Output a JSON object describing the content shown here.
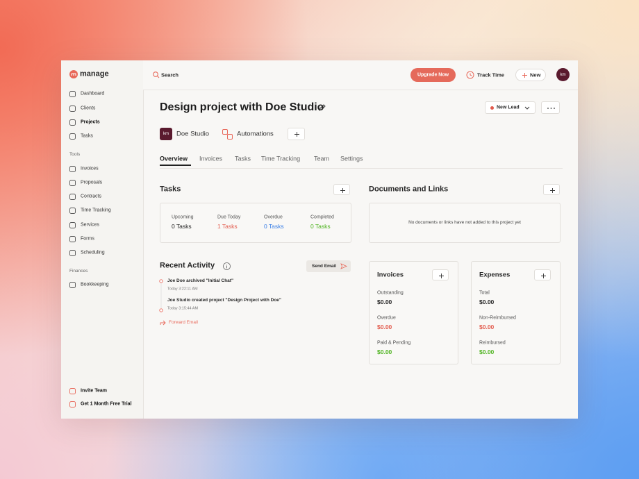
{
  "sidebar": {
    "logo": "manage",
    "items": [
      "Dashboard",
      "Clients",
      "Projects",
      "Tasks"
    ],
    "tools_label": "Tools",
    "tools": [
      "Invoices",
      "Proposals",
      "Contracts",
      "Time Tracking",
      "Services",
      "Forms",
      "Scheduling"
    ],
    "finances_label": "Finances",
    "finances": [
      "Bookkeeping"
    ],
    "footer": [
      "Invite Team",
      "Get 1 Month Free Trial"
    ]
  },
  "topbar": {
    "search": "Search",
    "upgrade": "Upgrade Now",
    "track_time": "Track Time",
    "new": "New",
    "avatar": "km"
  },
  "header": {
    "title": "Design project with Doe Studio",
    "status": "New Lead",
    "client_badge": "km",
    "client": "Doe Studio",
    "automations": "Automations"
  },
  "tabs": [
    "Overview",
    "Invoices",
    "Tasks",
    "Time Tracking",
    "Team",
    "Settings"
  ],
  "tasks": {
    "title": "Tasks",
    "stats": [
      {
        "label": "Upcoming",
        "value": "0 Tasks"
      },
      {
        "label": "Due Today",
        "value": "1 Tasks"
      },
      {
        "label": "Overdue",
        "value": "0 Tasks"
      },
      {
        "label": "Completed",
        "value": "0 Tasks"
      }
    ]
  },
  "documents": {
    "title": "Documents and Links",
    "empty": "No documents or links have not added to this project yet"
  },
  "activity": {
    "title": "Recent Activity",
    "send_email": "Send Email",
    "events": [
      {
        "text": "Joe Doe archived \"Initial Chat\"",
        "time": "Today 3:22:11 AM"
      },
      {
        "text": "Joe Studio created project \"Design Project with Doe\"",
        "time": "Today 3:15:44 AM"
      }
    ],
    "forward": "Forward Email"
  },
  "invoices": {
    "title": "Invoices",
    "rows": [
      {
        "label": "Outstanding",
        "value": "$0.00"
      },
      {
        "label": "Overdue",
        "value": "$0.00"
      },
      {
        "label": "Paid & Pending",
        "value": "$0.00"
      }
    ]
  },
  "expenses": {
    "title": "Expenses",
    "rows": [
      {
        "label": "Total",
        "value": "$0.00"
      },
      {
        "label": "Non-Reimbursed",
        "value": "$0.00"
      },
      {
        "label": "Reimbursed",
        "value": "$0.00"
      }
    ]
  }
}
